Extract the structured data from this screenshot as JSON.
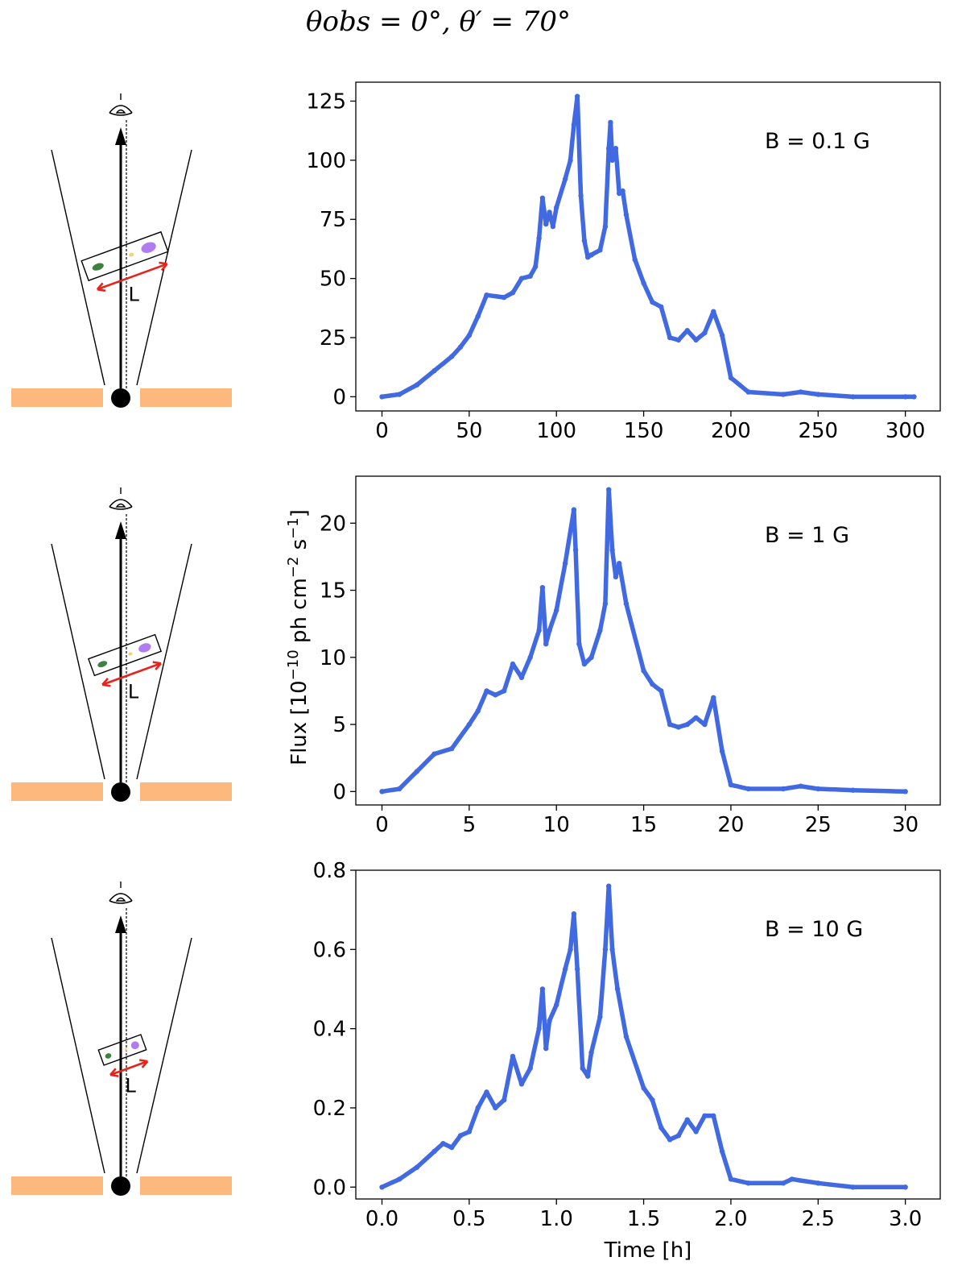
{
  "figure": {
    "title": "θobs = 0°, θ′ = 70°",
    "sketch_label": "L",
    "colors": {
      "series": "#4169e1",
      "disk": "#fdb97d",
      "arrow": "#e8231c",
      "blob_green": "#3f7f3f",
      "blob_yellow": "#f5cf7a",
      "blob_purple": "#b07cf0"
    },
    "icons": [
      "eye-icon",
      "black-hole-icon",
      "jet-arrow-icon",
      "emission-region-icon",
      "length-arrow-icon"
    ]
  },
  "chart_data": [
    {
      "type": "scatter",
      "annotation": "B = 0.1 G",
      "xlabel": "",
      "ylabel": "",
      "xlim": [
        -15,
        320
      ],
      "ylim": [
        -6,
        133
      ],
      "xticks": [
        0,
        50,
        100,
        150,
        200,
        250,
        300
      ],
      "yticks": [
        0,
        25,
        50,
        75,
        100,
        125
      ],
      "series": [
        {
          "x": [
            0,
            10,
            20,
            30,
            40,
            45,
            50,
            55,
            60,
            70,
            75,
            80,
            85,
            88,
            90,
            92,
            94,
            96,
            98,
            100,
            105,
            108,
            110,
            112,
            114,
            116,
            118,
            120,
            125,
            128,
            130,
            131,
            132,
            134,
            136,
            138,
            140,
            145,
            150,
            155,
            160,
            165,
            170,
            175,
            180,
            185,
            190,
            195,
            200,
            210,
            230,
            240,
            250,
            270,
            300,
            305
          ],
          "y": [
            0,
            1,
            5,
            11,
            17,
            21,
            26,
            34,
            43,
            42,
            44,
            50,
            51,
            55,
            67,
            84,
            73,
            78,
            72,
            80,
            92,
            100,
            115,
            127,
            85,
            66,
            59,
            60,
            62,
            72,
            105,
            116,
            100,
            105,
            86,
            87,
            77,
            58,
            48,
            40,
            38,
            25,
            24,
            28,
            24,
            27,
            36,
            26,
            8,
            2,
            1,
            2,
            1,
            0,
            0,
            0
          ]
        }
      ]
    },
    {
      "type": "scatter",
      "annotation": "B = 1 G",
      "xlabel": "",
      "ylabel": "Flux [10−10 ph cm−2 s−1]",
      "ylabel_parts": [
        "Flux [10",
        "−10",
        " ph cm",
        "−2",
        " s",
        "−1",
        "]"
      ],
      "xlim": [
        -1.5,
        32
      ],
      "ylim": [
        -1.0,
        23.5
      ],
      "xticks": [
        0,
        5,
        10,
        15,
        20,
        25,
        30
      ],
      "yticks": [
        0,
        5,
        10,
        15,
        20
      ],
      "series": [
        {
          "x": [
            0,
            1,
            2,
            3,
            4,
            5,
            5.5,
            6,
            6.5,
            7,
            7.5,
            8,
            8.5,
            9,
            9.2,
            9.4,
            9.6,
            10,
            10.5,
            11,
            11.1,
            11.3,
            11.6,
            12,
            12.5,
            12.8,
            13,
            13.2,
            13.4,
            13.6,
            14,
            15,
            15.5,
            16,
            16.5,
            17,
            17.5,
            18,
            18.5,
            19,
            19.5,
            20,
            21,
            23,
            24,
            25,
            27,
            30
          ],
          "y": [
            0,
            0.2,
            1.5,
            2.8,
            3.2,
            5,
            6,
            7.5,
            7.2,
            7.5,
            9.5,
            8.5,
            10,
            12,
            15.2,
            11,
            12,
            13.5,
            17,
            21,
            18,
            11,
            9.5,
            10,
            12,
            14,
            22.5,
            18,
            16,
            17,
            14,
            9,
            8,
            7.5,
            5,
            4.8,
            5,
            5.5,
            5,
            7,
            3,
            0.5,
            0.2,
            0.2,
            0.4,
            0.2,
            0.1,
            0
          ]
        }
      ]
    },
    {
      "type": "scatter",
      "annotation": "B = 10 G",
      "xlabel": "Time [h]",
      "ylabel": "",
      "xlim": [
        -0.15,
        3.2
      ],
      "ylim": [
        -0.03,
        0.8
      ],
      "xticks": [
        0.0,
        0.5,
        1.0,
        1.5,
        2.0,
        2.5,
        3.0
      ],
      "xtick_labels": [
        "0.0",
        "0.5",
        "1.0",
        "1.5",
        "2.0",
        "2.5",
        "3.0"
      ],
      "yticks": [
        0.0,
        0.2,
        0.4,
        0.6,
        0.8
      ],
      "ytick_labels": [
        "0.0",
        "0.2",
        "0.4",
        "0.6",
        "0.8"
      ],
      "series": [
        {
          "x": [
            0,
            0.1,
            0.2,
            0.3,
            0.35,
            0.4,
            0.45,
            0.5,
            0.55,
            0.6,
            0.65,
            0.7,
            0.75,
            0.8,
            0.85,
            0.9,
            0.92,
            0.94,
            0.96,
            1.0,
            1.05,
            1.08,
            1.1,
            1.12,
            1.15,
            1.18,
            1.2,
            1.25,
            1.28,
            1.3,
            1.32,
            1.35,
            1.4,
            1.5,
            1.55,
            1.6,
            1.65,
            1.7,
            1.75,
            1.8,
            1.85,
            1.9,
            1.95,
            2.0,
            2.1,
            2.3,
            2.35,
            2.5,
            2.7,
            3.0
          ],
          "y": [
            0,
            0.02,
            0.05,
            0.09,
            0.11,
            0.1,
            0.13,
            0.14,
            0.2,
            0.24,
            0.2,
            0.22,
            0.33,
            0.26,
            0.3,
            0.4,
            0.5,
            0.35,
            0.42,
            0.46,
            0.55,
            0.6,
            0.69,
            0.55,
            0.3,
            0.28,
            0.34,
            0.43,
            0.6,
            0.76,
            0.6,
            0.5,
            0.38,
            0.25,
            0.22,
            0.15,
            0.12,
            0.13,
            0.17,
            0.14,
            0.18,
            0.18,
            0.09,
            0.02,
            0.01,
            0.01,
            0.02,
            0.01,
            0,
            0
          ]
        }
      ]
    }
  ]
}
